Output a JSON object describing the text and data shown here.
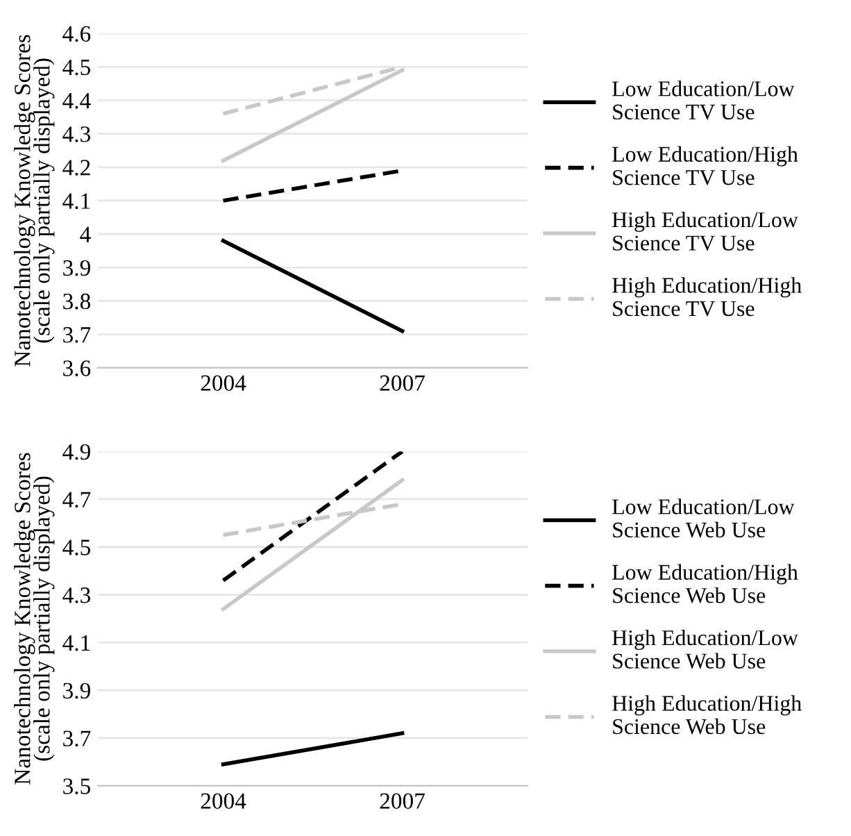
{
  "chart_data": [
    {
      "type": "line",
      "ylabel": "Nanotechnology Knowledge Scores\n(scale only partially displayed)",
      "categories": [
        "2004",
        "2007"
      ],
      "ylim": [
        3.6,
        4.6
      ],
      "yticks": [
        3.6,
        3.7,
        3.8,
        3.9,
        {
          "value": 4.0,
          "label": "4"
        },
        4.1,
        4.2,
        4.3,
        4.4,
        4.5,
        4.6
      ],
      "grid": "y",
      "legend": "right",
      "marker": "none",
      "series": [
        {
          "name": "Low Education/Low\nScience TV Use",
          "color": "#000000",
          "line_style": "solid",
          "values": [
            3.98,
            3.71
          ]
        },
        {
          "name": "Low Education/High\nScience TV Use",
          "color": "#000000",
          "line_style": "dashed",
          "values": [
            4.1,
            4.19
          ]
        },
        {
          "name": "High Education/Low\nScience TV Use",
          "color": "#c8c8c8",
          "line_style": "solid",
          "values": [
            4.22,
            4.49
          ]
        },
        {
          "name": "High Education/High\nScience TV Use",
          "color": "#c8c8c8",
          "line_style": "dashed",
          "values": [
            4.36,
            4.5
          ]
        }
      ]
    },
    {
      "type": "line",
      "ylabel": "Nanotechnology Knowledge Scores\n(scale only partially displayed)",
      "categories": [
        "2004",
        "2007"
      ],
      "ylim": [
        3.5,
        4.9
      ],
      "yticks": [
        3.5,
        3.7,
        3.9,
        4.1,
        4.3,
        4.5,
        4.7,
        4.9
      ],
      "grid": "y",
      "legend": "right",
      "marker": "none",
      "series": [
        {
          "name": "Low Education/Low\nScience Web Use",
          "color": "#000000",
          "line_style": "solid",
          "values": [
            3.59,
            3.72
          ]
        },
        {
          "name": "Low Education/High\nScience Web Use",
          "color": "#000000",
          "line_style": "dashed",
          "values": [
            4.36,
            4.9
          ]
        },
        {
          "name": "High Education/Low\nScience Web Use",
          "color": "#c8c8c8",
          "line_style": "solid",
          "values": [
            4.24,
            4.78
          ]
        },
        {
          "name": "High Education/High\nScience Web Use",
          "color": "#c8c8c8",
          "line_style": "dashed",
          "values": [
            4.55,
            4.68
          ]
        }
      ]
    }
  ]
}
